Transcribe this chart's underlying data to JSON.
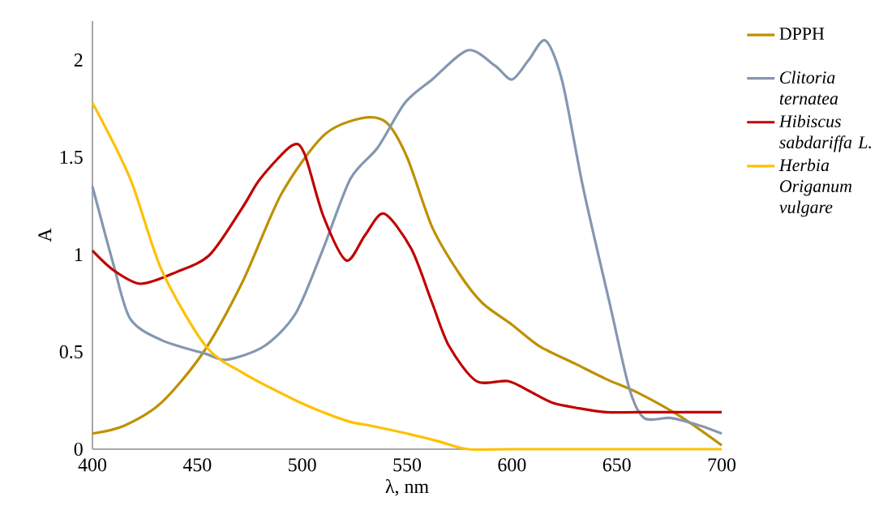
{
  "chart_data": {
    "type": "line",
    "xlabel": "λ, nm",
    "ylabel": "A",
    "xlim": [
      400,
      700
    ],
    "xticks": [
      400,
      450,
      500,
      550,
      600,
      650,
      700
    ],
    "ylim": [
      0,
      2.2
    ],
    "yticks": [
      0,
      0.5,
      1,
      1.5,
      2
    ],
    "grid": false,
    "legend": "right",
    "marker": "none",
    "line_style": "solid",
    "series": [
      {
        "name": "DPPH",
        "color": "#bf9000",
        "x": [
          400,
          415,
          433,
          453,
          472,
          490,
          510,
          528,
          540,
          550,
          562,
          575,
          586,
          600,
          613,
          630,
          645,
          660,
          680,
          700
        ],
        "values": [
          0.08,
          0.12,
          0.24,
          0.5,
          0.87,
          1.31,
          1.61,
          1.7,
          1.68,
          1.5,
          1.14,
          0.9,
          0.75,
          0.64,
          0.53,
          0.44,
          0.36,
          0.29,
          0.17,
          0.02
        ]
      },
      {
        "name": "*Clitoria ternatea*",
        "color": "#8497b0",
        "x": [
          400,
          410,
          418,
          433,
          454,
          464,
          482,
          497,
          510,
          523,
          536,
          549,
          562,
          579,
          592,
          600,
          608,
          616,
          624,
          634,
          647,
          656,
          663,
          676,
          690,
          700
        ],
        "values": [
          1.35,
          0.95,
          0.67,
          0.56,
          0.49,
          0.46,
          0.53,
          0.7,
          1.03,
          1.39,
          1.55,
          1.78,
          1.9,
          2.05,
          1.97,
          1.9,
          2.0,
          2.1,
          1.89,
          1.34,
          0.73,
          0.31,
          0.16,
          0.16,
          0.12,
          0.08
        ]
      },
      {
        "name": "*Hibiscus sabdariffa L.*",
        "color": "#c00000",
        "x": [
          400,
          410,
          423,
          440,
          456,
          472,
          480,
          495,
          501,
          510,
          521,
          530,
          539,
          552,
          562,
          570,
          583,
          598,
          608,
          619,
          632,
          645,
          660,
          680,
          700
        ],
        "values": [
          1.02,
          0.92,
          0.85,
          0.91,
          1.0,
          1.25,
          1.39,
          1.56,
          1.52,
          1.2,
          0.97,
          1.1,
          1.21,
          1.03,
          0.75,
          0.53,
          0.35,
          0.35,
          0.3,
          0.24,
          0.21,
          0.19,
          0.19,
          0.19,
          0.19
        ]
      },
      {
        "name": "*Herbia Origanum vulgare*",
        "color": "#ffc000",
        "x": [
          400,
          418,
          433,
          454,
          472,
          497,
          510,
          523,
          533,
          550,
          565,
          579,
          600,
          650,
          700
        ],
        "values": [
          1.78,
          1.39,
          0.92,
          0.53,
          0.39,
          0.25,
          0.19,
          0.14,
          0.12,
          0.08,
          0.04,
          0.0,
          0.0,
          0.0,
          0.0
        ]
      }
    ]
  }
}
